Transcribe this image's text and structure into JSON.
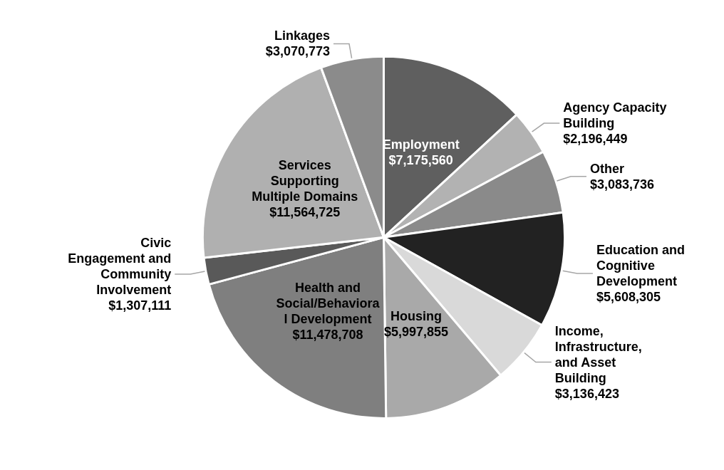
{
  "chart_data": {
    "type": "pie",
    "categories": [
      "Employment",
      "Agency Capacity\nBuilding",
      "Other",
      "Education and\nCognitive\nDevelopment",
      "Income,\nInfrastructure,\nand Asset\nBuilding",
      "Housing",
      "Health and\nSocial/Behaviora\nl Development",
      "Civic\nEngagement and\nCommunity\nInvolvement",
      "Services\nSupporting\nMultiple Domains",
      "Linkages"
    ],
    "values": [
      7175560,
      2196449,
      3083736,
      5608305,
      3136423,
      5997855,
      11478708,
      1307111,
      11564725,
      3070773
    ],
    "value_labels": [
      "$7,175,560",
      "$2,196,449",
      "$3,083,736",
      "$5,608,305",
      "$3,136,423",
      "$5,997,855",
      "$11,478,708",
      "$1,307,111",
      "$11,564,725",
      "$3,070,773"
    ],
    "colors": [
      "#5f5f5f",
      "#b2b2b2",
      "#8a8a8a",
      "#222222",
      "#d9d9d9",
      "#a9a9a9",
      "#7f7f7f",
      "#595959",
      "#b0b0b0",
      "#8b8b8b"
    ],
    "legend": false
  }
}
